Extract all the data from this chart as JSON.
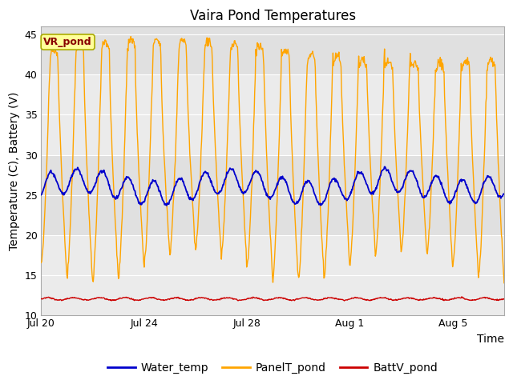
{
  "title": "Vaira Pond Temperatures",
  "ylabel": "Temperature (C), Battery (V)",
  "xlabel": "Time",
  "ylim": [
    10,
    46
  ],
  "yticks": [
    10,
    15,
    20,
    25,
    30,
    35,
    40,
    45
  ],
  "xtick_positions": [
    0,
    4,
    8,
    12,
    16
  ],
  "xtick_labels": [
    "Jul 20",
    "Jul 24",
    "Jul 28",
    "Aug 1",
    "Aug 5"
  ],
  "xlim": [
    0,
    18
  ],
  "water_temp_color": "#0000cc",
  "panel_temp_color": "#FFA500",
  "batt_color": "#cc0000",
  "bg_plot_color": "#e0e0e0",
  "bg_stripe_light": "#ebebeb",
  "annotation_text": "VR_pond",
  "annotation_bg": "#ffff99",
  "annotation_border": "#aaaa00",
  "annotation_text_color": "#880000",
  "legend_labels": [
    "Water_temp",
    "PanelT_pond",
    "BattV_pond"
  ],
  "title_fontsize": 12,
  "axis_fontsize": 10,
  "tick_fontsize": 9,
  "legend_fontsize": 10
}
